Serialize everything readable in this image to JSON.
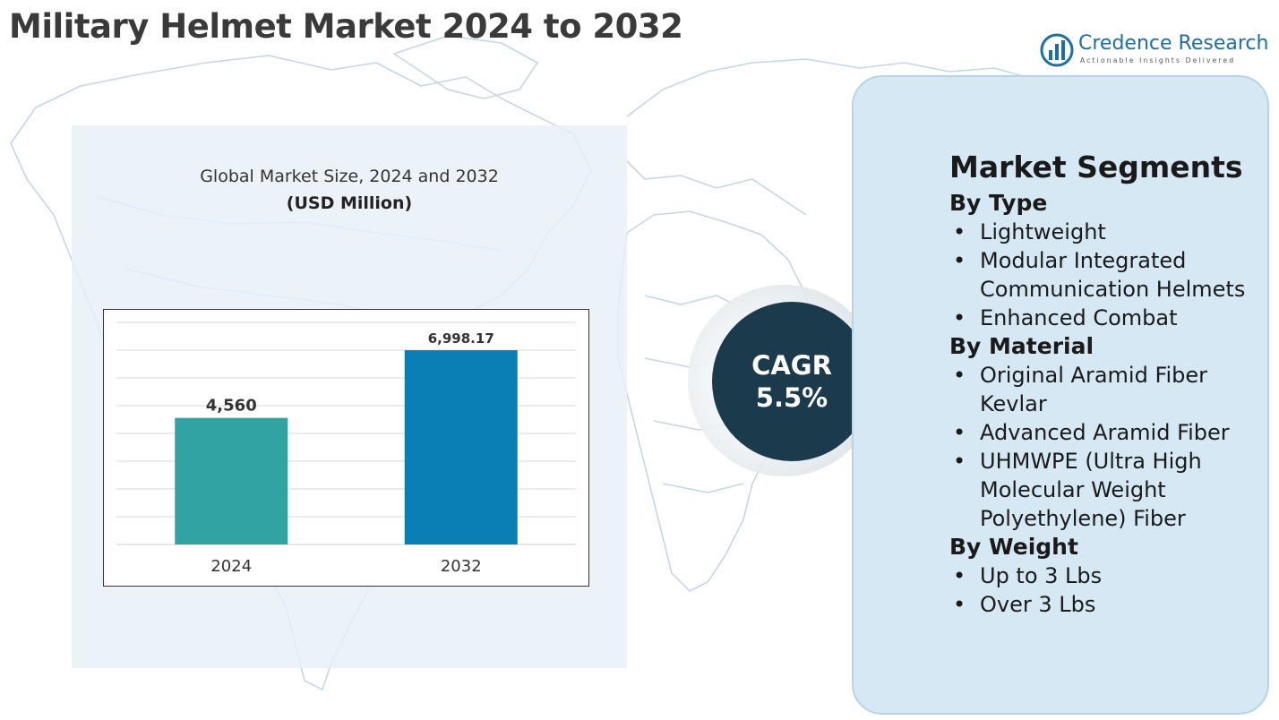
{
  "title": "Military Helmet Market 2024 to 2032",
  "logo": {
    "name": "Credence Research",
    "tagline": "Actionable Insights Delivered",
    "icon": "bar-chart-logo-icon"
  },
  "chart_panel": {
    "subtitle": "Global Market Size, 2024 and 2032",
    "unit": "(USD Million)"
  },
  "chart_data": {
    "type": "bar",
    "title": "Global Market Size, 2024 and 2032",
    "ylabel": "(USD Million)",
    "xlabel": "",
    "categories": [
      "2024",
      "2032"
    ],
    "values": [
      4560,
      6998.17
    ],
    "value_labels": [
      "4,560",
      "6,998.17"
    ],
    "colors": [
      "#31a3a3",
      "#0a7fb5"
    ],
    "ylim": [
      0,
      8000
    ],
    "grid": true,
    "legend": "none"
  },
  "cagr": {
    "label": "CAGR",
    "value": "5.5%"
  },
  "segments": {
    "title": "Market Segments",
    "bullet": "•",
    "groups": [
      {
        "title": "By Type",
        "items": [
          "Lightweight",
          "Modular Integrated Communication Helmets",
          "Enhanced Combat"
        ]
      },
      {
        "title": "By Material",
        "items": [
          "Original Aramid Fiber Kevlar",
          "Advanced Aramid Fiber",
          "UHMWPE (Ultra High Molecular Weight Polyethylene) Fiber"
        ]
      },
      {
        "title": "By Weight",
        "items": [
          "Up to 3 Lbs",
          "Over 3 Lbs"
        ]
      }
    ]
  },
  "colors": {
    "title_text": "#3a3a3a",
    "cagr_circle": "#1b3a4b",
    "segment_panel": "#d6e8f4",
    "chart_panel": "#e7f0f8",
    "map_lines": "#c4d7e6"
  }
}
